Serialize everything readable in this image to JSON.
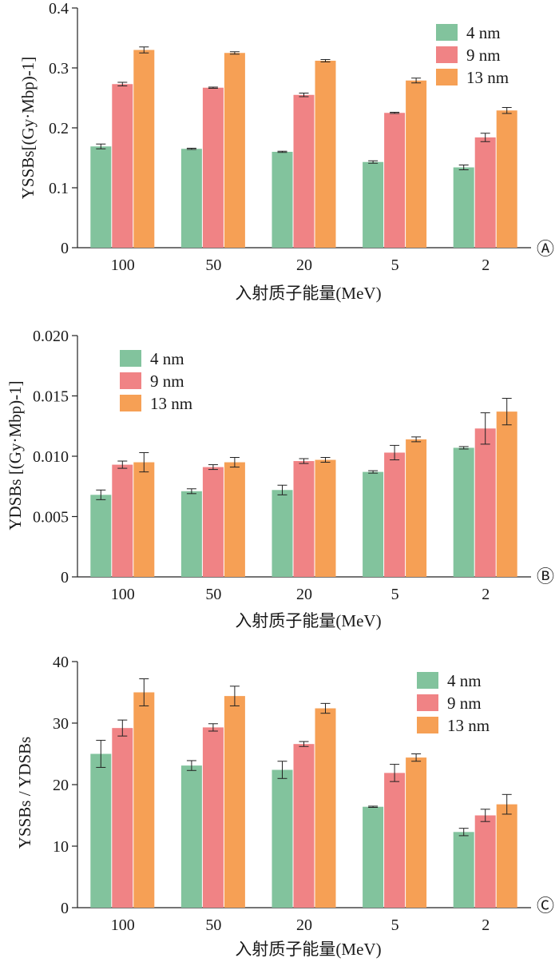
{
  "series_names": [
    "4 nm",
    "9 nm",
    "13 nm"
  ],
  "colors": [
    "#82c39d",
    "#f08385",
    "#f6a055"
  ],
  "chart_data": [
    {
      "type": "bar",
      "panel_label": "Ⓐ",
      "categories": [
        "100",
        "50",
        "20",
        "5",
        "2"
      ],
      "xlabel": "入射质子能量(MeV)",
      "ylabel": "YSSBs[(Gy·Mbp)-1]",
      "ylim": [
        0,
        0.4
      ],
      "yticks": [
        0,
        0.1,
        0.2,
        0.3,
        0.4
      ],
      "ytick_labels": [
        "0",
        "0.1",
        "0.2",
        "0.3",
        "0.4"
      ],
      "legend_position": "top-right",
      "series": [
        {
          "name": "4 nm",
          "values": [
            0.169,
            0.165,
            0.16,
            0.143,
            0.134
          ],
          "errors": [
            0.004,
            0.001,
            0.001,
            0.002,
            0.004
          ]
        },
        {
          "name": "9 nm",
          "values": [
            0.273,
            0.267,
            0.255,
            0.225,
            0.184
          ],
          "errors": [
            0.003,
            0.001,
            0.003,
            0.001,
            0.007
          ]
        },
        {
          "name": "13 nm",
          "values": [
            0.33,
            0.325,
            0.312,
            0.279,
            0.229
          ],
          "errors": [
            0.005,
            0.002,
            0.002,
            0.004,
            0.005
          ]
        }
      ]
    },
    {
      "type": "bar",
      "panel_label": "Ⓑ",
      "categories": [
        "100",
        "50",
        "20",
        "5",
        "2"
      ],
      "xlabel": "入射质子能量(MeV)",
      "ylabel": "YDSBs [(Gy·Mbp)-1]",
      "ylim": [
        0,
        0.02
      ],
      "yticks": [
        0,
        0.005,
        0.01,
        0.015,
        0.02
      ],
      "ytick_labels": [
        "0",
        "0.005",
        "0.010",
        "0.015",
        "0.020"
      ],
      "legend_position": "top-left",
      "series": [
        {
          "name": "4 nm",
          "values": [
            0.0068,
            0.0071,
            0.0072,
            0.0087,
            0.0107
          ],
          "errors": [
            0.0004,
            0.0002,
            0.0004,
            0.0001,
            0.0001
          ]
        },
        {
          "name": "9 nm",
          "values": [
            0.0093,
            0.0091,
            0.0096,
            0.0103,
            0.0123
          ],
          "errors": [
            0.0003,
            0.0002,
            0.0002,
            0.0006,
            0.0013
          ]
        },
        {
          "name": "13 nm",
          "values": [
            0.0095,
            0.0095,
            0.0097,
            0.0114,
            0.0137
          ],
          "errors": [
            0.0008,
            0.0004,
            0.0002,
            0.0002,
            0.0011
          ]
        }
      ]
    },
    {
      "type": "bar",
      "panel_label": "Ⓒ",
      "categories": [
        "100",
        "50",
        "20",
        "5",
        "2"
      ],
      "xlabel": "入射质子能量(MeV)",
      "ylabel": "YSSBs / YDSBs",
      "ylim": [
        0,
        40
      ],
      "yticks": [
        0,
        10,
        20,
        30,
        40
      ],
      "ytick_labels": [
        "0",
        "10",
        "20",
        "30",
        "40"
      ],
      "legend_position": "top-right",
      "series": [
        {
          "name": "4 nm",
          "values": [
            25.0,
            23.1,
            22.4,
            16.4,
            12.3
          ],
          "errors": [
            2.2,
            0.8,
            1.4,
            0.1,
            0.6
          ]
        },
        {
          "name": "9 nm",
          "values": [
            29.2,
            29.3,
            26.6,
            21.9,
            15.0
          ],
          "errors": [
            1.3,
            0.6,
            0.4,
            1.4,
            1.0
          ]
        },
        {
          "name": "13 nm",
          "values": [
            35.0,
            34.4,
            32.4,
            24.4,
            16.8
          ],
          "errors": [
            2.2,
            1.6,
            0.8,
            0.6,
            1.6
          ]
        }
      ]
    }
  ]
}
